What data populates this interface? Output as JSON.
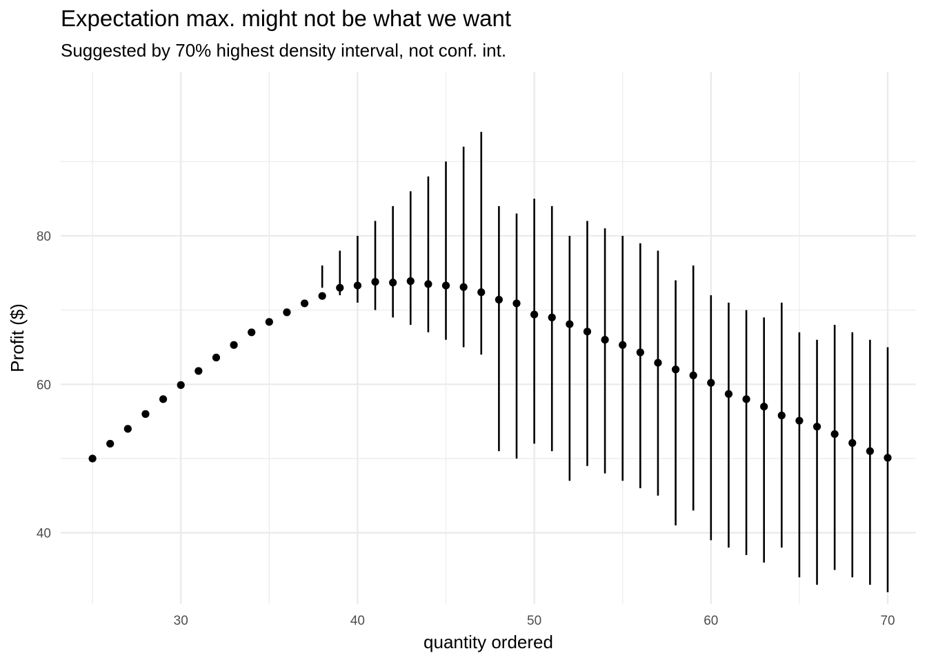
{
  "title": "Expectation max. might not be what we want",
  "subtitle": "Suggested by 70% highest density interval, not conf. int.",
  "colors": {
    "grid": "#ebebeb",
    "point": "#000000",
    "interval": "#000000",
    "background": "#ffffff"
  },
  "chart_data": {
    "type": "scatter",
    "title": "Expectation max. might not be what we want",
    "subtitle": "Suggested by 70% highest density interval, not conf. int.",
    "xlabel": "quantity ordered",
    "ylabel": "Profit ($)",
    "xlim": [
      23.2,
      71.6
    ],
    "ylim": [
      30.4,
      102.1
    ],
    "x_ticks": [
      30,
      40,
      50,
      60,
      70
    ],
    "y_ticks": [
      40,
      60,
      80
    ],
    "grid": true,
    "legend": "none",
    "series": [
      {
        "x": [
          25,
          26,
          27,
          28,
          29,
          30,
          31,
          32,
          33,
          34,
          35,
          36,
          37,
          38,
          39,
          40,
          41,
          42,
          43,
          44,
          45,
          46,
          47,
          48,
          49,
          50,
          51,
          52,
          53,
          54,
          55,
          56,
          57,
          58,
          59,
          60,
          61,
          62,
          63,
          64,
          65,
          66,
          67,
          68,
          69,
          70
        ],
        "y": [
          50.0,
          52.0,
          54.0,
          56.0,
          58.0,
          59.9,
          61.8,
          63.6,
          65.3,
          67.0,
          68.4,
          69.7,
          70.9,
          71.9,
          73.0,
          73.3,
          73.8,
          73.7,
          73.9,
          73.5,
          73.3,
          73.1,
          72.4,
          71.4,
          70.9,
          69.4,
          69.0,
          68.1,
          67.1,
          66.0,
          65.3,
          64.3,
          62.9,
          62.0,
          61.2,
          60.2,
          58.7,
          58.0,
          57.0,
          55.8,
          55.1,
          54.3,
          53.3,
          52.1,
          51.0,
          50.1
        ],
        "lower": [
          50.0,
          52.0,
          54.0,
          56.0,
          58.0,
          59.9,
          61.8,
          63.6,
          65.3,
          67.0,
          68.4,
          69.7,
          70.9,
          73.0,
          72.0,
          71.0,
          70.0,
          69.0,
          68.0,
          67.0,
          66.0,
          65.0,
          64.0,
          51.0,
          50.0,
          52.0,
          51.0,
          47.0,
          49.0,
          48.0,
          47.0,
          46.0,
          45.0,
          41.0,
          43.0,
          39.0,
          38.0,
          37.0,
          36.0,
          38.0,
          34.0,
          33.0,
          35.0,
          34.0,
          33.0,
          32.0
        ],
        "upper": [
          50.0,
          52.0,
          54.0,
          56.0,
          58.0,
          59.9,
          61.8,
          63.6,
          65.3,
          67.0,
          68.4,
          69.7,
          70.9,
          76.0,
          78.0,
          80.0,
          82.0,
          84.0,
          86.0,
          88.0,
          90.0,
          92.0,
          94.0,
          84.0,
          83.0,
          85.0,
          84.0,
          80.0,
          82.0,
          81.0,
          80.0,
          79.0,
          78.0,
          74.0,
          76.0,
          72.0,
          71.0,
          70.0,
          69.0,
          71.0,
          67.0,
          66.0,
          68.0,
          67.0,
          66.0,
          65.0
        ]
      }
    ]
  }
}
